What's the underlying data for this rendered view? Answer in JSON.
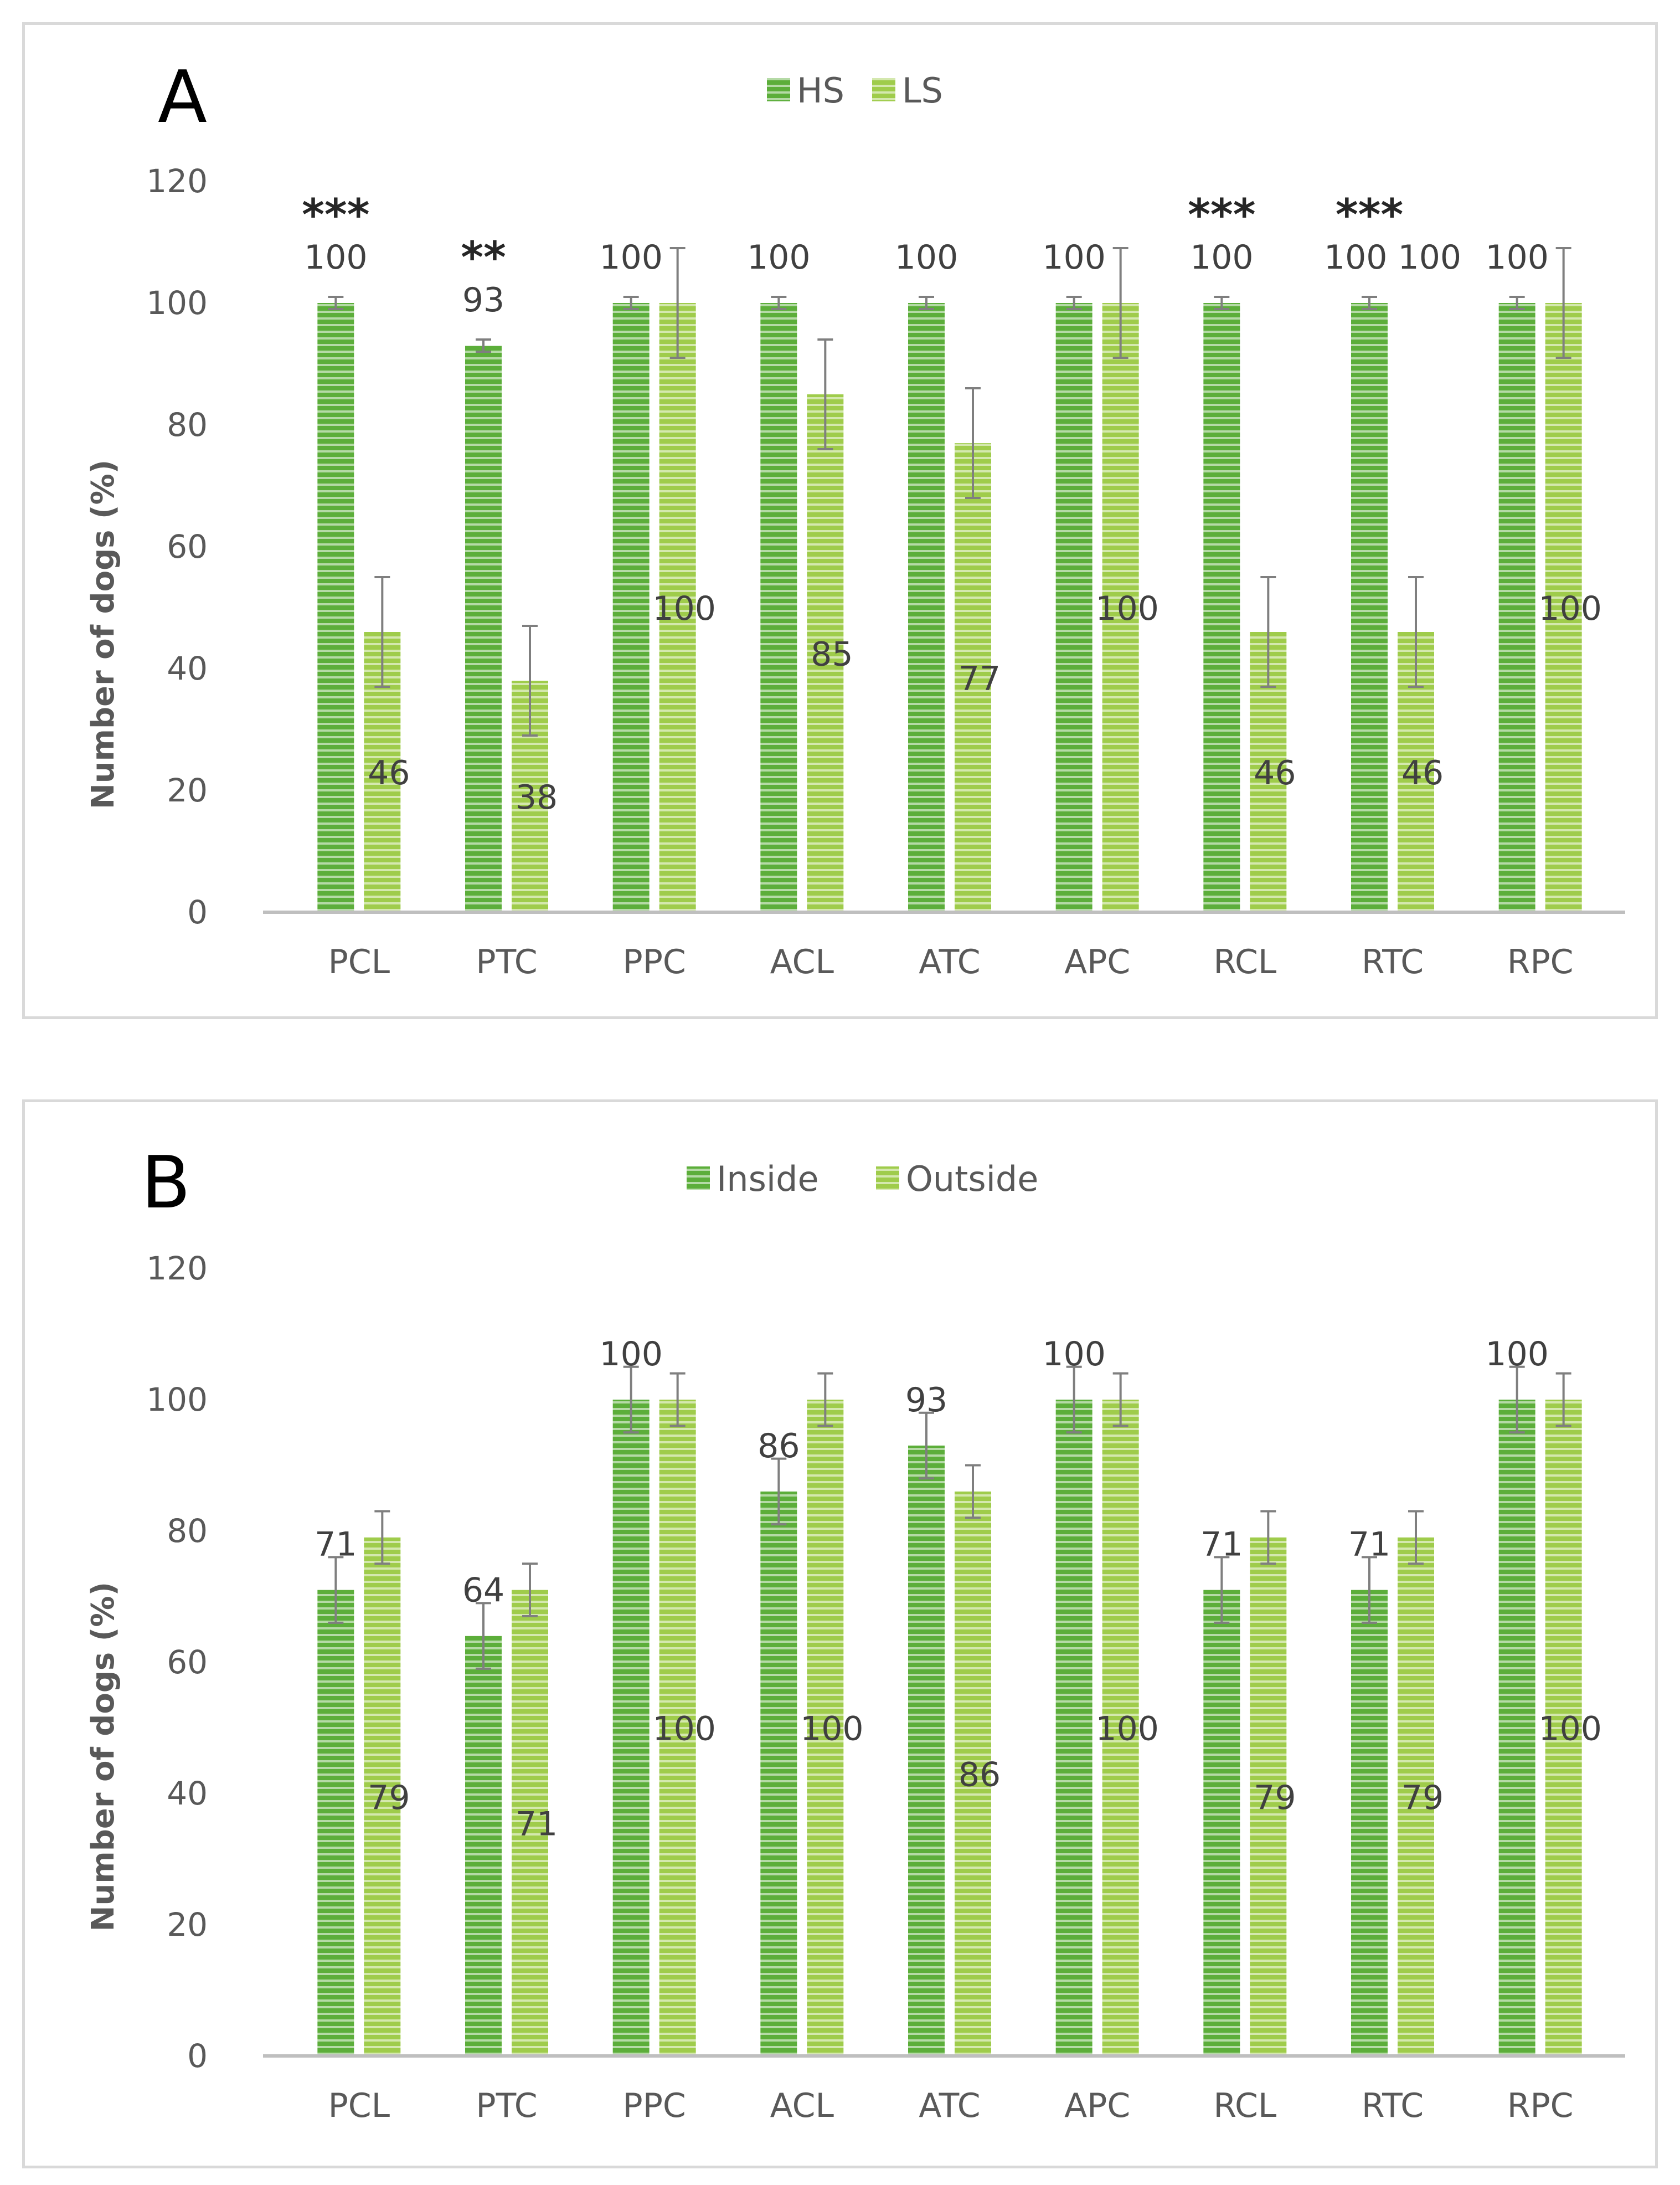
{
  "chart_data": [
    {
      "panel_label": "A",
      "type": "bar",
      "categories": [
        "PCL",
        "PTC",
        "PPC",
        "ACL",
        "ATC",
        "APC",
        "RCL",
        "RTC",
        "RPC"
      ],
      "series": [
        {
          "name": "HS",
          "values": [
            100,
            93,
            100,
            100,
            100,
            100,
            100,
            100,
            100
          ],
          "err": [
            1,
            1,
            1,
            1,
            1,
            1,
            1,
            1,
            1
          ],
          "color": "#5cae3a"
        },
        {
          "name": "LS",
          "values": [
            46,
            38,
            100,
            85,
            77,
            100,
            46,
            46,
            100
          ],
          "err": [
            9,
            9,
            9,
            9,
            9,
            9,
            9,
            9,
            9
          ],
          "color": "#9fcc4b"
        }
      ],
      "data_labels": [
        [
          "100",
          "93",
          "100",
          "100",
          "100",
          "100",
          "100",
          "100 100",
          "100"
        ],
        [
          "46",
          "38",
          "100",
          "85",
          "77",
          "100",
          "46",
          "46",
          "100"
        ]
      ],
      "significance": [
        "***",
        "**",
        "",
        "",
        "",
        "",
        "***",
        "***",
        ""
      ],
      "ylabel": "Number of dogs (%)",
      "ylim": [
        0,
        120
      ],
      "yticks": [
        0,
        20,
        40,
        60,
        80,
        100,
        120
      ],
      "legend": "top-center"
    },
    {
      "panel_label": "B",
      "type": "bar",
      "categories": [
        "PCL",
        "PTC",
        "PPC",
        "ACL",
        "ATC",
        "APC",
        "RCL",
        "RTC",
        "RPC"
      ],
      "series": [
        {
          "name": "Inside",
          "values": [
            71,
            64,
            100,
            86,
            93,
            100,
            71,
            71,
            100
          ],
          "err": [
            5,
            5,
            5,
            5,
            5,
            5,
            5,
            5,
            5
          ],
          "color": "#5cae3a"
        },
        {
          "name": "Outside",
          "values": [
            79,
            71,
            100,
            100,
            86,
            100,
            79,
            79,
            100
          ],
          "err": [
            4,
            4,
            4,
            4,
            4,
            4,
            4,
            4,
            4
          ],
          "color": "#9fcc4b"
        }
      ],
      "data_labels": [
        [
          "71",
          "64",
          "100",
          "86",
          "93",
          "100",
          "71",
          "71",
          "100"
        ],
        [
          "79",
          "71",
          "100",
          "100",
          "86",
          "100",
          "79",
          "79",
          "100"
        ]
      ],
      "significance": [
        "",
        "",
        "",
        "",
        "",
        "",
        "",
        "",
        ""
      ],
      "ylabel": "Number of dogs (%)",
      "ylim": [
        0,
        120
      ],
      "yticks": [
        0,
        20,
        40,
        60,
        80,
        100,
        120
      ],
      "legend": "top-center"
    }
  ]
}
